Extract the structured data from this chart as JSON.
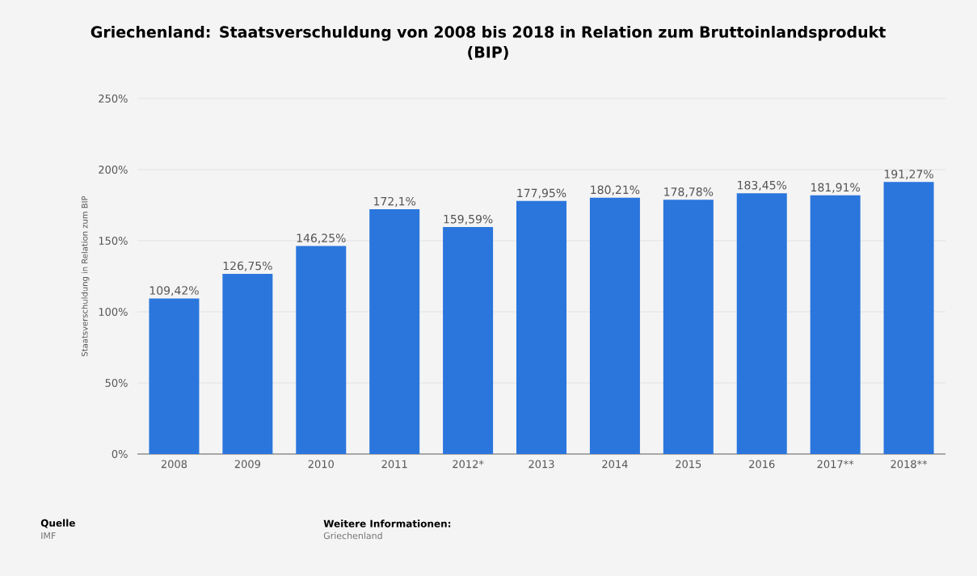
{
  "chart_data": {
    "type": "bar",
    "title": "Griechenland: Staatsverschuldung von 2008 bis 2018 in Relation zum Bruttoinlandsprodukt (BIP)",
    "ylabel": "Staatsverschuldung in Relation zum BIP",
    "categories": [
      "2008",
      "2009",
      "2010",
      "2011",
      "2012*",
      "2013",
      "2014",
      "2015",
      "2016",
      "2017**",
      "2018**"
    ],
    "values": [
      109.42,
      126.75,
      146.25,
      172.1,
      159.59,
      177.95,
      180.21,
      178.78,
      183.45,
      181.91,
      191.27
    ],
    "value_labels": [
      "109,42%",
      "126,75%",
      "146,25%",
      "172,1%",
      "159,59%",
      "177,95%",
      "180,21%",
      "178,78%",
      "183,45%",
      "181,91%",
      "191,27%"
    ],
    "color": "#2a76dd",
    "ylim": [
      0,
      250
    ],
    "yticks": [
      {
        "value": 0,
        "label": "0%"
      },
      {
        "value": 50,
        "label": "50%"
      },
      {
        "value": 100,
        "label": "100%"
      },
      {
        "value": 150,
        "label": "150%"
      },
      {
        "value": 200,
        "label": "200%"
      },
      {
        "value": 250,
        "label": "250%"
      }
    ],
    "grid": "y",
    "annotations": [
      "Quelle",
      "IMF",
      "Weitere Informationen:",
      "Griechenland"
    ]
  }
}
